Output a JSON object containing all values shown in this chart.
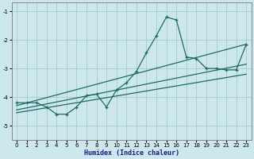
{
  "xlabel": "Humidex (Indice chaleur)",
  "bg_color": "#cce8ec",
  "grid_color": "#aacdd4",
  "line_color": "#1e6b65",
  "xlim": [
    -0.5,
    23.5
  ],
  "ylim": [
    -5.5,
    -0.7
  ],
  "xticks": [
    0,
    1,
    2,
    3,
    4,
    5,
    6,
    7,
    8,
    9,
    10,
    11,
    12,
    13,
    14,
    15,
    16,
    17,
    18,
    19,
    20,
    21,
    22,
    23
  ],
  "yticks": [
    -5,
    -4,
    -3,
    -2,
    -1
  ],
  "line1_x": [
    0,
    1,
    2,
    3,
    4,
    5,
    6,
    7,
    8,
    9,
    10,
    11,
    12,
    13,
    14,
    15,
    16,
    17,
    18,
    19,
    20,
    21,
    22,
    23
  ],
  "line1_y": [
    -4.2,
    -4.2,
    -4.2,
    -4.35,
    -4.6,
    -4.6,
    -4.35,
    -3.95,
    -3.9,
    -4.35,
    -3.75,
    -3.5,
    -3.1,
    -2.45,
    -1.85,
    -1.2,
    -1.3,
    -2.6,
    -2.65,
    -3.0,
    -3.0,
    -3.05,
    -3.05,
    -2.15
  ],
  "trend1_x": [
    0,
    23
  ],
  "trend1_y": [
    -4.3,
    -2.15
  ],
  "trend2_x": [
    0,
    23
  ],
  "trend2_y": [
    -4.45,
    -2.85
  ],
  "trend3_x": [
    0,
    23
  ],
  "trend3_y": [
    -4.55,
    -3.2
  ]
}
